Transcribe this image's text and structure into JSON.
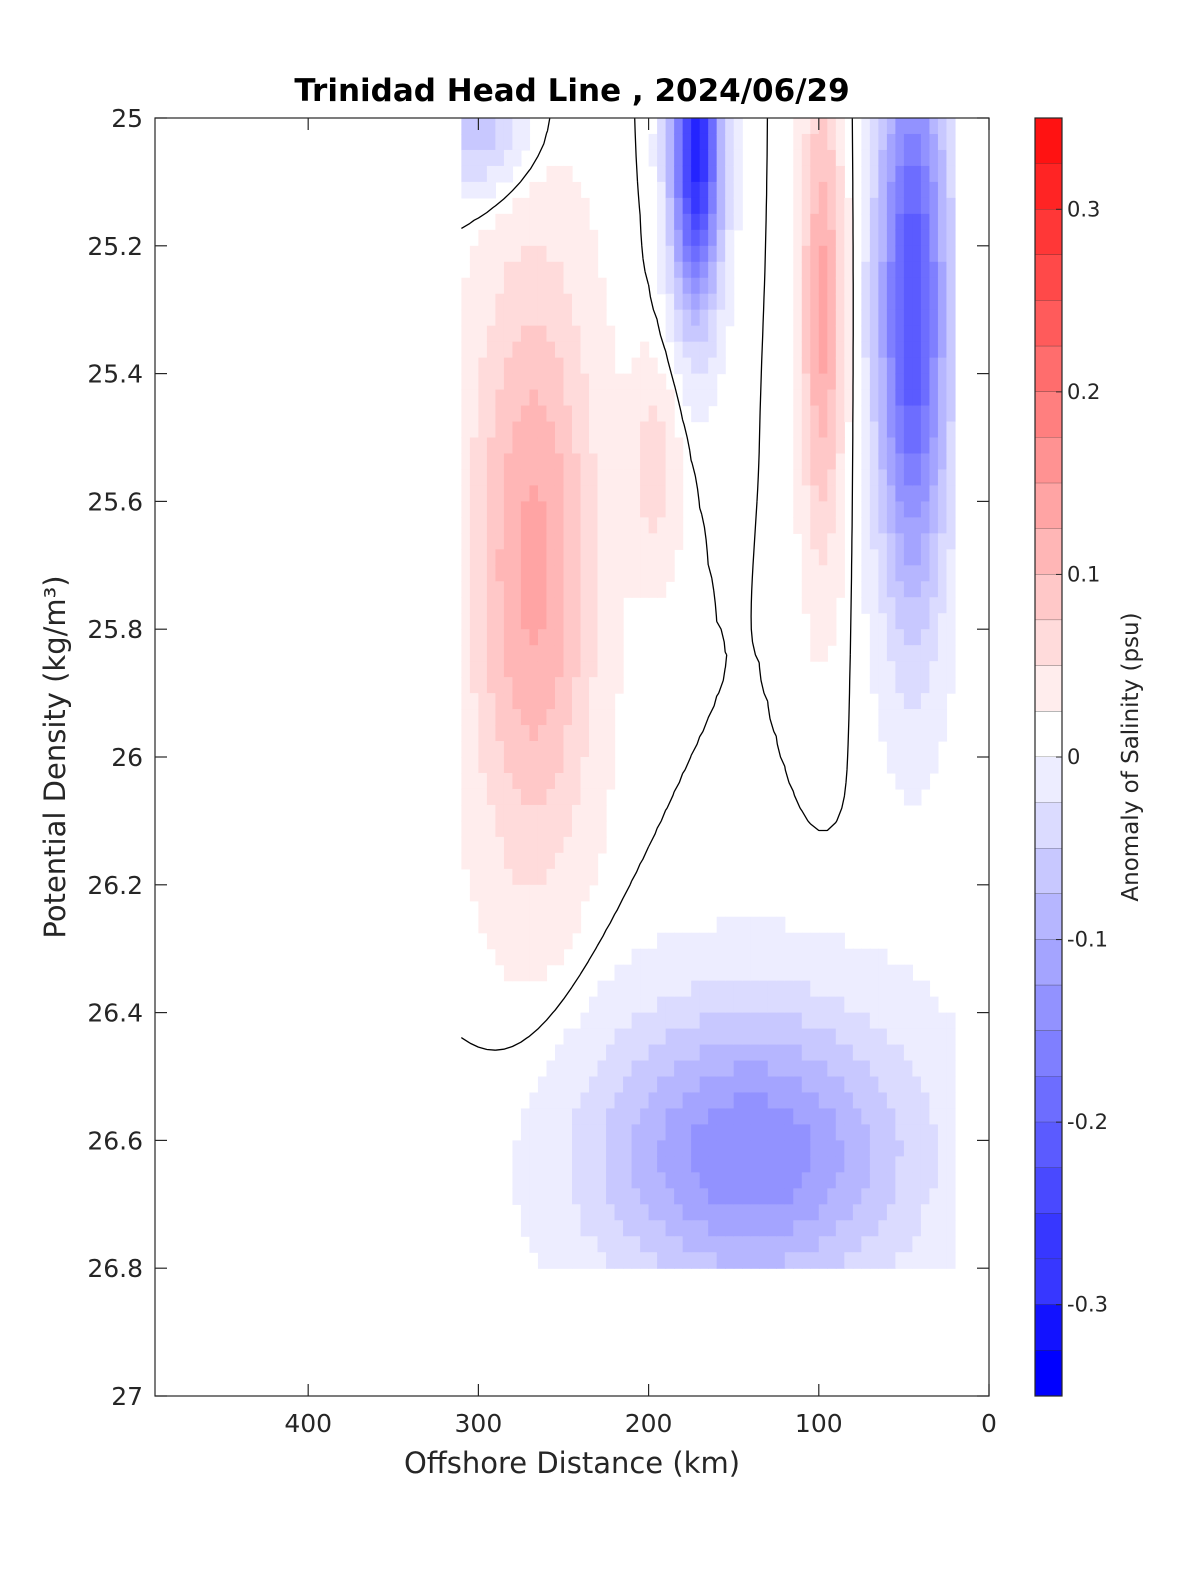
{
  "chart_data": {
    "type": "heatmap",
    "title": "Trinidad Head Line , 2024/06/29",
    "xlabel": "Offshore Distance (km)",
    "ylabel": "Potential Density (kg/m³)",
    "xlim": [
      490,
      0
    ],
    "x_reversed": true,
    "ylim": [
      25,
      27
    ],
    "y_reversed": true,
    "xticks": [
      "400",
      "300",
      "200",
      "100",
      "0"
    ],
    "xtick_values": [
      400,
      300,
      200,
      100,
      0
    ],
    "yticks": [
      "25",
      "25.2",
      "25.4",
      "25.6",
      "25.8",
      "26",
      "26.2",
      "26.4",
      "26.6",
      "26.8",
      "27"
    ],
    "ytick_values": [
      25,
      25.2,
      25.4,
      25.6,
      25.8,
      26,
      26.2,
      26.4,
      26.6,
      26.8,
      27
    ],
    "colorbar": {
      "label": "Anomaly of Salinity (psu)",
      "range": [
        -0.35,
        0.35
      ],
      "level_step": 0.025,
      "ticks": [
        "0.3",
        "0.2",
        "0.1",
        "0",
        "-0.1",
        "-0.2",
        "-0.3"
      ],
      "tick_values": [
        0.3,
        0.2,
        0.1,
        0,
        -0.1,
        -0.2,
        -0.3
      ],
      "colormap": "blue-white-red",
      "color_min": "#0000ff",
      "color_zero": "#ffffff",
      "color_max": "#ff0000"
    },
    "contour_line_level": 0,
    "contour_line_color": "#000000",
    "anomaly_regions": [
      {
        "name": "offshore-positive-core",
        "x": [
          235,
          320
        ],
        "y": [
          25.15,
          26.3
        ],
        "peak_x": 268,
        "peak_y": 25.7,
        "peak": 0.12
      },
      {
        "name": "mid-positive-patch",
        "x": [
          180,
          215
        ],
        "y": [
          25.35,
          25.75
        ],
        "peak_x": 196,
        "peak_y": 25.55,
        "peak": 0.05
      },
      {
        "name": "nearshore-positive-core",
        "x": [
          85,
          115
        ],
        "y": [
          25.0,
          25.9
        ],
        "peak_x": 98,
        "peak_y": 25.3,
        "peak": 0.12
      },
      {
        "name": "surface-negative-175km",
        "x": [
          160,
          195
        ],
        "y": [
          25.0,
          25.6
        ],
        "peak_x": 172,
        "peak_y": 25.05,
        "peak": -0.3
      },
      {
        "name": "coastal-negative",
        "x": [
          25,
          75
        ],
        "y": [
          25.0,
          26.1
        ],
        "peak_x": 45,
        "peak_y": 25.3,
        "peak": -0.24
      },
      {
        "name": "deep-negative",
        "x": [
          40,
          260
        ],
        "y": [
          26.25,
          26.8
        ],
        "peak_x": 140,
        "peak_y": 26.62,
        "peak": -0.16
      },
      {
        "name": "offshore-surface-negative",
        "x": [
          245,
          320
        ],
        "y": [
          25.0,
          25.25
        ],
        "peak_x": 300,
        "peak_y": 25.02,
        "peak": -0.08
      }
    ]
  }
}
